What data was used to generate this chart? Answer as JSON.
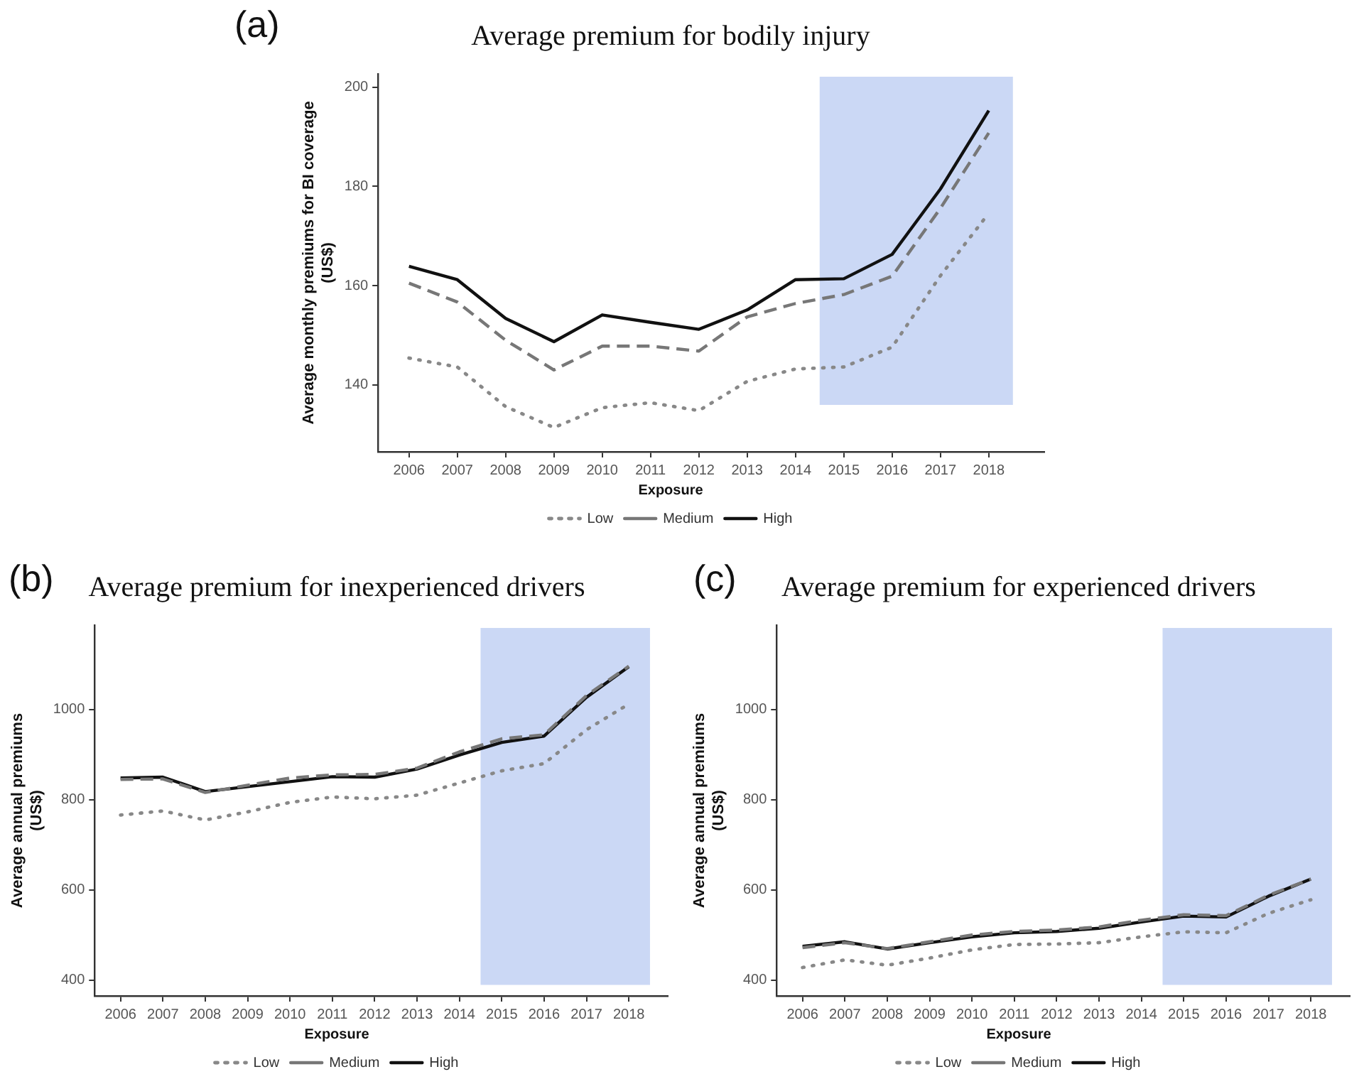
{
  "chart_data": [
    {
      "type": "line",
      "title": "Average premium for bodily injury",
      "ylabel": "Average monthly premiums for BI coverage\n(US$)",
      "legend_title": "Exposure",
      "legend": "bottom",
      "annotations": [
        "(a)"
      ],
      "x": [
        2006,
        2007,
        2008,
        2009,
        2010,
        2011,
        2012,
        2013,
        2014,
        2015,
        2016,
        2017,
        2018
      ],
      "xlim": [
        2005.36,
        2019.15
      ],
      "xticks": [
        2006,
        2007,
        2008,
        2009,
        2010,
        2011,
        2012,
        2013,
        2014,
        2015,
        2016,
        2017,
        2018
      ],
      "ylim": [
        126.5,
        202.7
      ],
      "yticks": [
        140,
        160,
        180,
        200
      ],
      "grid": false,
      "bands": [
        {
          "axis": "x",
          "from": 2014.5,
          "to": 2018.5,
          "color": "#cbd8f5"
        }
      ],
      "series": [
        {
          "name": "Low",
          "color": "#888888",
          "line_style": "dotted",
          "values": [
            145.4,
            143.6,
            135.6,
            131.4,
            135.4,
            136.4,
            134.8,
            140.7,
            143.2,
            143.6,
            147.6,
            162.0,
            174.6
          ]
        },
        {
          "name": "Medium",
          "color": "#777777",
          "line_style": "dashed",
          "values": [
            160.5,
            156.7,
            149.0,
            143.0,
            147.8,
            147.8,
            146.8,
            153.7,
            156.4,
            158.2,
            161.9,
            175.6,
            190.8
          ]
        },
        {
          "name": "High",
          "color": "#111111",
          "line_style": "solid",
          "values": [
            163.9,
            161.2,
            153.4,
            148.7,
            154.1,
            152.6,
            151.2,
            155.1,
            161.2,
            161.4,
            166.3,
            179.5,
            195.3
          ]
        }
      ]
    },
    {
      "type": "line",
      "title": "Average premium for inexperienced drivers",
      "ylabel": "Average annual premiums\n(US$)",
      "legend_title": "Exposure",
      "legend": "bottom",
      "annotations": [
        "(b)"
      ],
      "x": [
        2006,
        2007,
        2008,
        2009,
        2010,
        2011,
        2012,
        2013,
        2014,
        2015,
        2016,
        2017,
        2018
      ],
      "xlim": [
        2005.39,
        2018.92
      ],
      "xticks": [
        2006,
        2007,
        2008,
        2009,
        2010,
        2011,
        2012,
        2013,
        2014,
        2015,
        2016,
        2017,
        2018
      ],
      "ylim": [
        365,
        1187
      ],
      "yticks": [
        400,
        600,
        800,
        1000
      ],
      "grid": false,
      "bands": [
        {
          "axis": "x",
          "from": 2014.5,
          "to": 2018.5,
          "color": "#cbd8f5"
        }
      ],
      "series": [
        {
          "name": "Low",
          "color": "#888888",
          "line_style": "dotted",
          "values": [
            766,
            775,
            755,
            773,
            794,
            806,
            802,
            810,
            837,
            864,
            880,
            955,
            1012
          ]
        },
        {
          "name": "Medium",
          "color": "#777777",
          "line_style": "dashed",
          "values": [
            845,
            846,
            816,
            832,
            848,
            855,
            856,
            870,
            906,
            935,
            944,
            1031,
            1096
          ]
        },
        {
          "name": "High",
          "color": "#111111",
          "line_style": "solid",
          "values": [
            848,
            850,
            818,
            829,
            840,
            851,
            850,
            868,
            899,
            927,
            941,
            1027,
            1095
          ]
        }
      ]
    },
    {
      "type": "line",
      "title": "Average premium for experienced drivers",
      "ylabel": "Average annual premiums\n(US$)",
      "legend_title": "Exposure",
      "legend": "bottom",
      "annotations": [
        "(c)"
      ],
      "x": [
        2006,
        2007,
        2008,
        2009,
        2010,
        2011,
        2012,
        2013,
        2014,
        2015,
        2016,
        2017,
        2018
      ],
      "xlim": [
        2005.39,
        2018.92
      ],
      "xticks": [
        2006,
        2007,
        2008,
        2009,
        2010,
        2011,
        2012,
        2013,
        2014,
        2015,
        2016,
        2017,
        2018
      ],
      "ylim": [
        365,
        1187
      ],
      "yticks": [
        400,
        600,
        800,
        1000
      ],
      "grid": false,
      "bands": [
        {
          "axis": "x",
          "from": 2014.5,
          "to": 2018.5,
          "color": "#cbd8f5"
        }
      ],
      "series": [
        {
          "name": "Low",
          "color": "#888888",
          "line_style": "dotted",
          "values": [
            428,
            445,
            433,
            449,
            467,
            479,
            480,
            483,
            496,
            507,
            505,
            548,
            578
          ]
        },
        {
          "name": "Medium",
          "color": "#777777",
          "line_style": "dashed",
          "values": [
            472,
            483,
            470,
            485,
            500,
            508,
            511,
            518,
            533,
            545,
            543,
            588,
            624
          ]
        },
        {
          "name": "High",
          "color": "#111111",
          "line_style": "solid",
          "values": [
            475,
            485,
            469,
            483,
            496,
            505,
            508,
            515,
            529,
            542,
            540,
            586,
            624
          ]
        }
      ]
    }
  ]
}
